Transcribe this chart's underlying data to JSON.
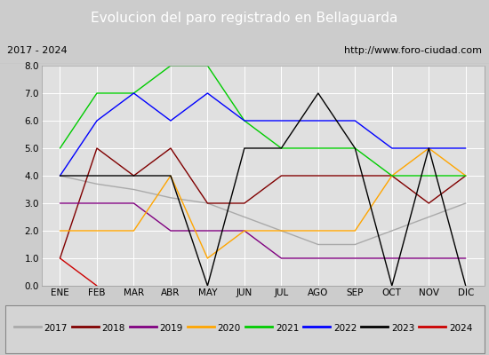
{
  "title": "Evolucion del paro registrado en Bellaguarda",
  "subtitle_left": "2017 - 2024",
  "subtitle_right": "http://www.foro-ciudad.com",
  "months": [
    "ENE",
    "FEB",
    "MAR",
    "ABR",
    "MAY",
    "JUN",
    "JUL",
    "AGO",
    "SEP",
    "OCT",
    "NOV",
    "DIC"
  ],
  "month_indices": [
    1,
    2,
    3,
    4,
    5,
    6,
    7,
    8,
    9,
    10,
    11,
    12
  ],
  "series": {
    "2017": {
      "color": "#aaaaaa",
      "data": [
        4,
        3.7,
        3.5,
        3.2,
        3.0,
        2.5,
        2.0,
        1.5,
        1.5,
        2.0,
        2.5,
        3.0
      ]
    },
    "2018": {
      "color": "#800000",
      "data": [
        1,
        5,
        4,
        5,
        3,
        3,
        4,
        4,
        4,
        4,
        3,
        4
      ]
    },
    "2019": {
      "color": "#800080",
      "data": [
        3,
        3,
        3,
        2,
        2,
        2,
        1,
        1,
        1,
        1,
        1,
        1
      ]
    },
    "2020": {
      "color": "#ffa500",
      "data": [
        2,
        2,
        2,
        4,
        1,
        2,
        2,
        2,
        2,
        4,
        5,
        4
      ]
    },
    "2021": {
      "color": "#00cc00",
      "data": [
        5,
        7,
        7,
        8,
        8,
        6,
        5,
        5,
        5,
        4,
        4,
        4
      ]
    },
    "2022": {
      "color": "#0000ff",
      "data": [
        4,
        6,
        7,
        6,
        7,
        6,
        6,
        6,
        6,
        5,
        5,
        5
      ]
    },
    "2023": {
      "color": "#000000",
      "data": [
        4,
        4,
        4,
        4,
        0,
        5,
        5,
        7,
        5,
        0,
        5,
        0
      ]
    },
    "2024": {
      "color": "#cc0000",
      "data": [
        1,
        0,
        null,
        null,
        null,
        null,
        null,
        null,
        null,
        null,
        null,
        null
      ]
    }
  },
  "ylim": [
    0,
    8.0
  ],
  "yticks": [
    0.0,
    1.0,
    2.0,
    3.0,
    4.0,
    5.0,
    6.0,
    7.0,
    8.0
  ],
  "bg_color": "#cccccc",
  "plot_bg_color": "#e0e0e0",
  "title_bg_color": "#4169b8",
  "title_color": "#ffffff",
  "header_bg_color": "#c8c8c8",
  "legend_bg_color": "#d4d4d4"
}
